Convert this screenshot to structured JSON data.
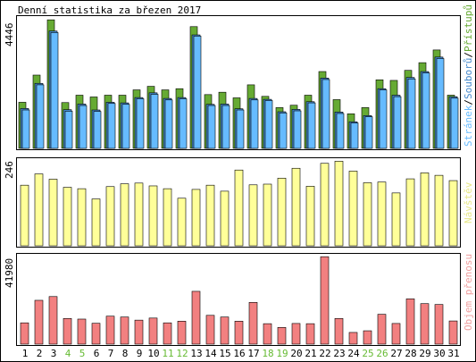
{
  "colors": {
    "background": "#ffffff",
    "border": "#000000",
    "pages": "#66bbff",
    "files": "#4488cc",
    "hits": "#66aa33",
    "visits": "#ffff99",
    "traffic": "#f28080",
    "weekend": "#66bb33",
    "weekday": "#000000"
  },
  "chart_data": [
    {
      "type": "bar",
      "title": "Denní statistika za březen 2017",
      "ymax_label": "4446",
      "ylim": [
        0,
        4446
      ],
      "categories": [
        "1",
        "2",
        "3",
        "4",
        "5",
        "6",
        "7",
        "8",
        "9",
        "10",
        "11",
        "12",
        "13",
        "14",
        "15",
        "16",
        "17",
        "18",
        "19",
        "20",
        "21",
        "22",
        "23",
        "24",
        "25",
        "26",
        "27",
        "28",
        "29",
        "30",
        "31"
      ],
      "weekend_days": [
        "4",
        "5",
        "11",
        "12",
        "18",
        "19",
        "25",
        "26"
      ],
      "legend": [
        "Stránek",
        "Souborů",
        "Přístupů"
      ],
      "series": [
        {
          "name": "Přístupů",
          "values": [
            1560,
            2480,
            4350,
            1550,
            1800,
            1740,
            1800,
            1800,
            1980,
            2100,
            1980,
            2020,
            4120,
            1820,
            1900,
            1710,
            2150,
            1760,
            1380,
            1460,
            1800,
            2600,
            1650,
            1170,
            1380,
            2320,
            2300,
            2640,
            2900,
            3330,
            1800
          ]
        },
        {
          "name": "Souborů",
          "values": [
            1350,
            2200,
            3970,
            1310,
            1500,
            1300,
            1560,
            1540,
            1720,
            1880,
            1690,
            1720,
            3840,
            1490,
            1500,
            1340,
            1690,
            1660,
            1240,
            1320,
            1580,
            2380,
            1230,
            900,
            1110,
            2020,
            1800,
            2400,
            2600,
            3090,
            1750
          ]
        },
        {
          "name": "Stránek",
          "values": [
            1300,
            2150,
            3920,
            1260,
            1450,
            1250,
            1520,
            1490,
            1680,
            1830,
            1640,
            1680,
            3800,
            1450,
            1450,
            1300,
            1640,
            1620,
            1200,
            1270,
            1540,
            2330,
            1180,
            860,
            1070,
            1980,
            1750,
            2350,
            2550,
            3040,
            1700
          ]
        }
      ]
    },
    {
      "type": "bar",
      "ymax_label": "246",
      "ylim": [
        0,
        246
      ],
      "legend": [
        "Návštěv"
      ],
      "series": [
        {
          "name": "Návštěv",
          "values": [
            172,
            204,
            189,
            166,
            162,
            133,
            168,
            176,
            178,
            170,
            162,
            135,
            160,
            172,
            155,
            215,
            173,
            175,
            192,
            220,
            169,
            234,
            240,
            212,
            179,
            181,
            150,
            190,
            207,
            200,
            185
          ]
        }
      ]
    },
    {
      "type": "bar",
      "ymax_label": "41980",
      "ylim": [
        0,
        41980
      ],
      "legend": [
        "Objem přenosu"
      ],
      "series": [
        {
          "name": "Objem přenosu",
          "values": [
            10200,
            21000,
            22800,
            12300,
            12000,
            10000,
            13400,
            13000,
            11500,
            12500,
            10200,
            11000,
            25300,
            13800,
            13000,
            11000,
            20000,
            9800,
            8000,
            9900,
            9800,
            41900,
            12300,
            5600,
            6400,
            14300,
            9900,
            21700,
            19400,
            19000,
            11100
          ]
        }
      ]
    }
  ]
}
